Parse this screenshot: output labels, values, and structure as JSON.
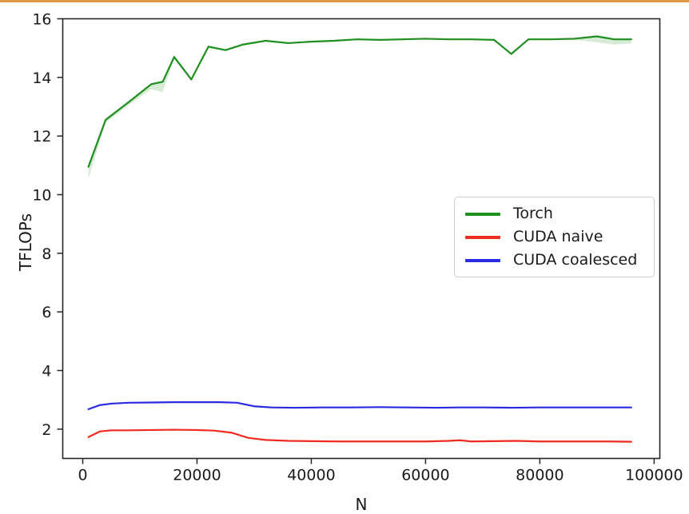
{
  "page": {
    "top_bar_color": "#E19A44",
    "background": "#FFFFFF"
  },
  "chart_data": {
    "type": "line",
    "title": "",
    "xlabel": "N",
    "ylabel": "TFLOPs",
    "xlim": [
      -3500,
      101000
    ],
    "ylim": [
      1.0,
      16.0
    ],
    "x_ticks": [
      0,
      20000,
      40000,
      60000,
      80000,
      100000
    ],
    "x_tick_labels": [
      "0",
      "20000",
      "40000",
      "60000",
      "80000",
      "100000"
    ],
    "y_ticks": [
      2,
      4,
      6,
      8,
      10,
      12,
      14,
      16
    ],
    "y_tick_labels": [
      "2",
      "4",
      "6",
      "8",
      "10",
      "12",
      "14",
      "16"
    ],
    "grid": false,
    "axis_color": "#262626",
    "text_color": "#1a1a1a",
    "legend": {
      "position": "center-right",
      "border_color": "#cccccc",
      "background": "#ffffff"
    },
    "series": [
      {
        "name": "Torch",
        "color": "#1f8f1f",
        "band_opacity": 0.18,
        "x": [
          1000,
          4000,
          8000,
          12000,
          14000,
          16000,
          19000,
          22000,
          25000,
          28000,
          32000,
          36000,
          40000,
          44000,
          48000,
          52000,
          56000,
          60000,
          64000,
          68000,
          72000,
          75000,
          78000,
          82000,
          86000,
          90000,
          93000,
          96000
        ],
        "values": [
          10.95,
          12.55,
          13.15,
          13.77,
          13.85,
          14.7,
          13.93,
          15.05,
          14.93,
          15.12,
          15.25,
          15.17,
          15.22,
          15.25,
          15.3,
          15.28,
          15.3,
          15.32,
          15.3,
          15.3,
          15.28,
          14.8,
          15.3,
          15.3,
          15.32,
          15.4,
          15.3,
          15.3
        ],
        "band_lower": [
          10.55,
          12.45,
          13.05,
          13.6,
          13.5,
          14.62,
          13.9,
          15.0,
          14.9,
          15.1,
          15.22,
          15.14,
          15.2,
          15.23,
          15.28,
          15.26,
          15.28,
          15.3,
          15.28,
          15.28,
          15.26,
          14.77,
          15.28,
          15.28,
          15.28,
          15.2,
          15.12,
          15.15
        ],
        "band_upper": [
          11.05,
          12.6,
          13.2,
          13.8,
          13.9,
          14.73,
          13.96,
          15.08,
          14.96,
          15.15,
          15.27,
          15.2,
          15.24,
          15.27,
          15.32,
          15.3,
          15.32,
          15.34,
          15.32,
          15.32,
          15.3,
          14.83,
          15.32,
          15.32,
          15.35,
          15.43,
          15.33,
          15.33
        ]
      },
      {
        "name": "CUDA naive",
        "color": "#ee2b1e",
        "x": [
          1000,
          3000,
          5000,
          8000,
          12000,
          16000,
          20000,
          23000,
          26000,
          29000,
          32000,
          36000,
          40000,
          45000,
          50000,
          55000,
          60000,
          64000,
          66000,
          68000,
          72000,
          76000,
          80000,
          84000,
          88000,
          92000,
          96000
        ],
        "values": [
          1.73,
          1.92,
          1.96,
          1.96,
          1.97,
          1.98,
          1.97,
          1.95,
          1.88,
          1.7,
          1.63,
          1.6,
          1.59,
          1.58,
          1.58,
          1.58,
          1.58,
          1.6,
          1.62,
          1.58,
          1.59,
          1.6,
          1.58,
          1.58,
          1.58,
          1.58,
          1.57
        ]
      },
      {
        "name": "CUDA coalesced",
        "color": "#2a2ae0",
        "x": [
          1000,
          3000,
          5000,
          8000,
          12000,
          16000,
          20000,
          24000,
          27000,
          30000,
          33000,
          37000,
          42000,
          47000,
          52000,
          57000,
          62000,
          66000,
          70000,
          75000,
          80000,
          85000,
          90000,
          96000
        ],
        "values": [
          2.68,
          2.82,
          2.87,
          2.9,
          2.91,
          2.92,
          2.92,
          2.92,
          2.9,
          2.78,
          2.74,
          2.73,
          2.74,
          2.74,
          2.75,
          2.74,
          2.73,
          2.74,
          2.74,
          2.73,
          2.74,
          2.74,
          2.74,
          2.74
        ]
      }
    ]
  }
}
